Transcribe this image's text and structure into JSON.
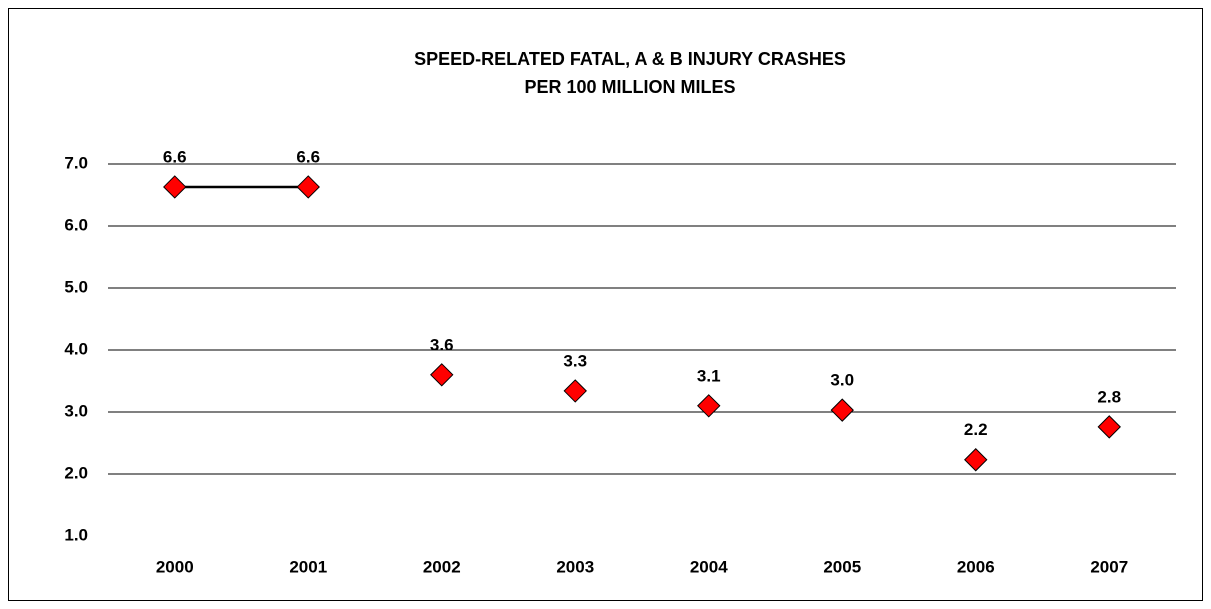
{
  "chart_data": {
    "type": "line",
    "title": [
      "SPEED-RELATED  FATAL, A & B INJURY CRASHES",
      "PER 100 MILLION MILES"
    ],
    "categories": [
      "2000",
      "2001",
      "2002",
      "2003",
      "2004",
      "2005",
      "2006",
      "2007"
    ],
    "series": [
      {
        "color": "#ff0000",
        "line_color": "#000000",
        "values": [
          6.63,
          6.63,
          3.6,
          3.34,
          3.1,
          3.03,
          2.23,
          2.76
        ],
        "value_labels": [
          "6.6",
          "6.6",
          "3.6",
          "3.3",
          "3.1",
          "3.0",
          "2.2",
          "2.8"
        ],
        "connect": [
          [
            0,
            1
          ]
        ]
      }
    ],
    "ylim": [
      1,
      7
    ],
    "yticks": [
      {
        "value": 1,
        "label": "1.0"
      },
      {
        "value": 2,
        "label": "2.0"
      },
      {
        "value": 3,
        "label": "3.0"
      },
      {
        "value": 4,
        "label": "4.0"
      },
      {
        "value": 5,
        "label": "5.0"
      },
      {
        "value": 6,
        "label": "6.0"
      },
      {
        "value": 7,
        "label": "7.0"
      }
    ],
    "grid": true
  }
}
